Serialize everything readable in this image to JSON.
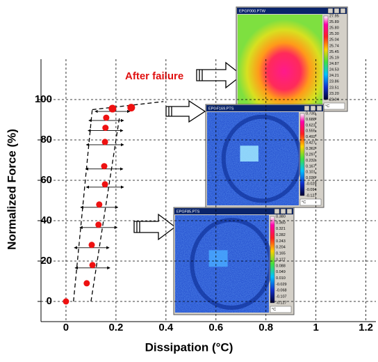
{
  "chart_data": {
    "type": "scatter",
    "x_label": "Dissipation (°C)",
    "y_label": "Normalized Force (%)",
    "annotation": "After failure",
    "xlim": [
      -0.1,
      1.24
    ],
    "ylim": [
      -10,
      120
    ],
    "xticks": [
      0,
      0.2,
      0.4,
      0.6,
      0.8,
      1,
      1.2
    ],
    "yticks": [
      0,
      20,
      40,
      60,
      80,
      100
    ],
    "grid": true,
    "series": [
      {
        "color": "#ee1111",
        "x": [
          0,
          0.083,
          0.106,
          0.103,
          0.13,
          0.133,
          0.156,
          0.153,
          0.156,
          0.158,
          0.161,
          0.186,
          0.261
        ],
        "values": [
          0,
          9,
          18,
          28,
          38,
          48,
          58,
          67,
          79,
          86,
          91,
          95.5,
          96
        ],
        "xerr": [
          0,
          0,
          0.07,
          0.07,
          0.075,
          0.075,
          0.075,
          0.075,
          0.075,
          0.07,
          0.07,
          0.07,
          0
        ]
      }
    ],
    "envelopes": [
      {
        "x": [
          0.03,
          0.105
        ],
        "values": [
          0,
          95
        ]
      },
      {
        "x": [
          0.1,
          0.215
        ],
        "values": [
          0,
          92
        ]
      },
      {
        "x": [
          0.105,
          0.39
        ],
        "values": [
          95,
          99
        ]
      }
    ]
  },
  "insets": [
    {
      "title": "EPGF000.PTW",
      "unit": "°C",
      "scale": [
        "27.95",
        "25.89",
        "25.80",
        "25.30",
        "25.04",
        "25.74",
        "25.45",
        "25.19",
        "24.87",
        "24.53",
        "24.21",
        "23.86",
        "23.51",
        "23.20",
        "23.04"
      ]
    },
    {
      "title": "EPGF169.PTS",
      "unit": "°C",
      "scale": [
        "0.730",
        "0.688",
        "0.623",
        "0.555",
        "0.492",
        "0.427",
        "0.362",
        "0.297",
        "0.232",
        "0.167",
        "0.101",
        "0.036",
        "-0.029",
        "-0.094",
        "-0.127"
      ]
    },
    {
      "title": "EPGF85.PTS",
      "unit": "°C",
      "scale": [
        "0.380",
        "0.360",
        "0.321",
        "0.282",
        "0.243",
        "0.204",
        "0.165",
        "0.127",
        "0.088",
        "0.049",
        "0.010",
        "-0.029",
        "-0.068",
        "-0.107",
        "-0.127"
      ]
    }
  ]
}
